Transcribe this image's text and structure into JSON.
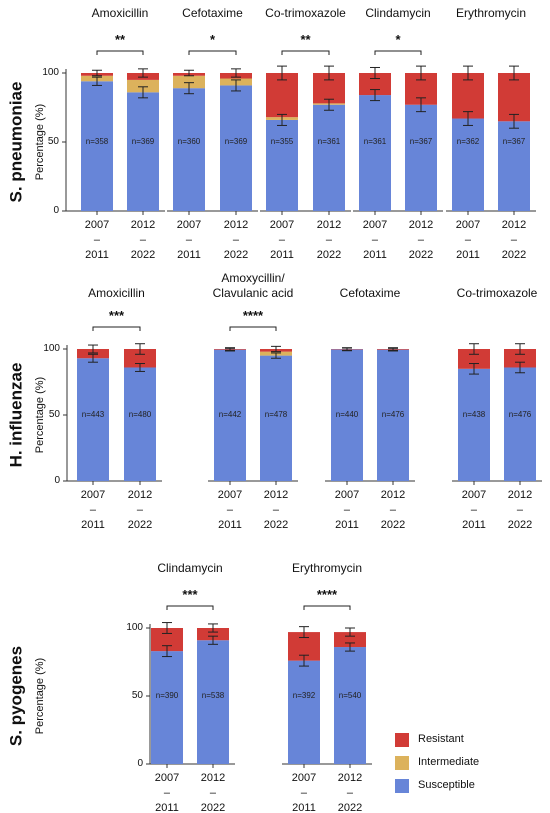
{
  "chart_data": [
    {
      "type": "stacked_bar",
      "title": "S. pneumoniae",
      "ylabel": "Percentage (%)",
      "ylim": [
        0,
        100
      ],
      "yticks": [
        0,
        50,
        100
      ],
      "categories": [
        "2007\n–\n2011",
        "2012\n–\n2022"
      ],
      "panels": [
        {
          "title": "Amoxicillin",
          "n": [
            "n=358",
            "n=369"
          ],
          "significance": "**",
          "series": [
            {
              "values": [
                2,
                5
              ],
              "errors": [
                2,
                3
              ]
            },
            {
              "values": [
                4,
                9
              ]
            },
            {
              "values": [
                94,
                86
              ],
              "errors": [
                3,
                4
              ]
            }
          ]
        },
        {
          "title": "Cefotaxime",
          "n": [
            "n=360",
            "n=369"
          ],
          "significance": "*",
          "series": [
            {
              "values": [
                2,
                4
              ],
              "errors": [
                2,
                3
              ]
            },
            {
              "values": [
                9,
                5
              ]
            },
            {
              "values": [
                89,
                91
              ],
              "errors": [
                4,
                4
              ]
            }
          ]
        },
        {
          "title": "Co-trimoxazole",
          "n": [
            "n=355",
            "n=361"
          ],
          "significance": "**",
          "series": [
            {
              "values": [
                32,
                22
              ],
              "errors": [
                5,
                5
              ]
            },
            {
              "values": [
                2,
                1
              ]
            },
            {
              "values": [
                66,
                77
              ],
              "errors": [
                4,
                4
              ]
            }
          ]
        },
        {
          "title": "Clindamycin",
          "n": [
            "n=361",
            "n=367"
          ],
          "significance": "*",
          "series": [
            {
              "values": [
                16,
                23
              ],
              "errors": [
                4,
                5
              ]
            },
            {
              "values": [
                0,
                0
              ]
            },
            {
              "values": [
                84,
                77
              ],
              "errors": [
                4,
                5
              ]
            }
          ]
        },
        {
          "title": "Erythromycin",
          "n": [
            "n=362",
            "n=367"
          ],
          "series": [
            {
              "values": [
                33,
                35
              ],
              "errors": [
                5,
                5
              ]
            },
            {
              "values": [
                0,
                0
              ]
            },
            {
              "values": [
                67,
                65
              ],
              "errors": [
                5,
                5
              ]
            }
          ]
        }
      ]
    },
    {
      "type": "stacked_bar",
      "title": "H. influenzae",
      "ylabel": "Percentage (%)",
      "ylim": [
        0,
        100
      ],
      "yticks": [
        0,
        50,
        100
      ],
      "categories": [
        "2007\n–\n2011",
        "2012\n–\n2022"
      ],
      "panels": [
        {
          "title": "Amoxicillin",
          "n": [
            "n=443",
            "n=480"
          ],
          "significance": "***",
          "series": [
            {
              "values": [
                7,
                14
              ],
              "errors": [
                3,
                4
              ]
            },
            {
              "values": [
                0,
                0
              ]
            },
            {
              "values": [
                93,
                86
              ],
              "errors": [
                3,
                3
              ]
            }
          ]
        },
        {
          "title": "Amoxycillin/\nClavulanic acid",
          "n": [
            "n=442",
            "n=478"
          ],
          "significance": "****",
          "series": [
            {
              "values": [
                0.5,
                2
              ],
              "errors": [
                1,
                2
              ]
            },
            {
              "values": [
                0,
                3
              ]
            },
            {
              "values": [
                99.5,
                95
              ],
              "errors": [
                1,
                2
              ]
            }
          ]
        },
        {
          "title": "Cefotaxime",
          "n": [
            "n=440",
            "n=476"
          ],
          "series": [
            {
              "values": [
                0.3,
                0.5
              ],
              "errors": [
                1,
                1
              ]
            },
            {
              "values": [
                0,
                0
              ]
            },
            {
              "values": [
                99.7,
                99.5
              ],
              "errors": [
                1,
                1
              ]
            }
          ]
        },
        {
          "title": "Co-trimoxazole",
          "n": [
            "n=438",
            "n=476"
          ],
          "series": [
            {
              "values": [
                15,
                14
              ],
              "errors": [
                4,
                4
              ]
            },
            {
              "values": [
                0,
                0
              ]
            },
            {
              "values": [
                85,
                86
              ],
              "errors": [
                4,
                4
              ]
            }
          ]
        }
      ]
    },
    {
      "type": "stacked_bar",
      "title": "S. pyogenes",
      "ylabel": "Percentage (%)",
      "ylim": [
        0,
        100
      ],
      "yticks": [
        0,
        50,
        100
      ],
      "categories": [
        "2007\n–\n2011",
        "2012\n–\n2022"
      ],
      "legend": "right",
      "series": [
        {
          "name": "Resistant",
          "color": "#d13b36"
        },
        {
          "name": "Intermediate",
          "color": "#dcb25c"
        },
        {
          "name": "Susceptible",
          "color": "#6785d8"
        }
      ],
      "panels": [
        {
          "title": "Clindamycin",
          "n": [
            "n=390",
            "n=538"
          ],
          "significance": "***",
          "series": [
            {
              "values": [
                17,
                9
              ],
              "errors": [
                4,
                3
              ]
            },
            {
              "values": [
                0,
                0
              ]
            },
            {
              "values": [
                83,
                91
              ],
              "errors": [
                4,
                3
              ]
            }
          ]
        },
        {
          "title": "Erythromycin",
          "n": [
            "n=392",
            "n=540"
          ],
          "significance": "****",
          "series": [
            {
              "values": [
                21,
                11
              ],
              "errors": [
                4,
                3
              ]
            },
            {
              "values": [
                0,
                0
              ]
            },
            {
              "values": [
                76,
                86
              ],
              "errors": [
                4,
                3
              ]
            }
          ]
        }
      ]
    }
  ]
}
